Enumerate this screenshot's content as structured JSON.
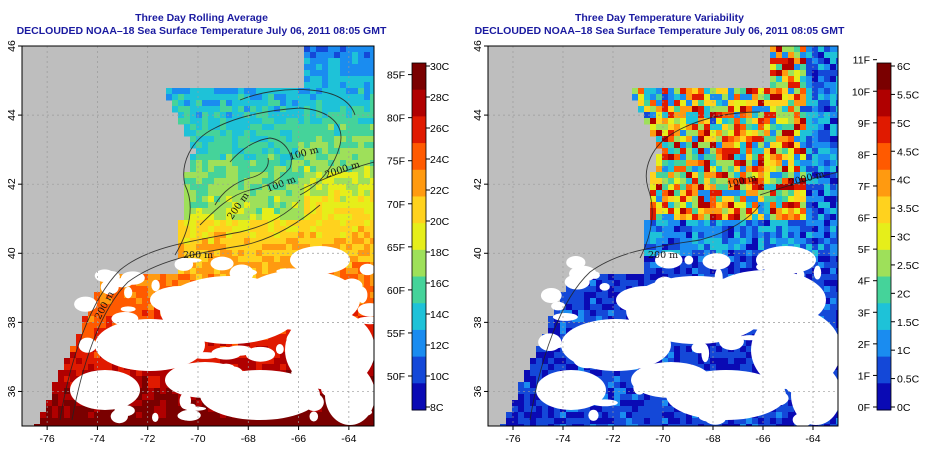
{
  "colors": {
    "land": "#bebebe",
    "cloud": "#ffffff",
    "title": "#1a1aa0",
    "contour": "#222222",
    "grid": "#9a9a9a"
  },
  "panels": [
    {
      "title": "Three Day Rolling Average",
      "subtitle": "DECLOUDED NOAA–18 Sea Surface Temperature July 06, 2011 08:05 GMT",
      "field": "sst",
      "contour_labels": [
        "200 m",
        "200 m",
        "200 m",
        "2000 m",
        "100 m",
        "100 m"
      ],
      "colorbar": {
        "left_labels": [
          "85F",
          "80F",
          "75F",
          "70F",
          "65F",
          "60F",
          "55F",
          "50F"
        ],
        "right_labels": [
          "30C",
          "28C",
          "26C",
          "24C",
          "22C",
          "20C",
          "18C",
          "16C",
          "14C",
          "12C",
          "10C",
          "8C"
        ],
        "colors": [
          "#7a0000",
          "#b00000",
          "#e01a00",
          "#ff5a00",
          "#ff9a10",
          "#ffd21e",
          "#e6ee1a",
          "#9ee05a",
          "#45d39a",
          "#1ec2d8",
          "#1a8cf0",
          "#1448d8",
          "#0a0ab4"
        ]
      }
    },
    {
      "title": "Three Day Temperature Variability",
      "subtitle": "DECLOUDED NOAA–18 Sea Surface Temperature July 06, 2011 08:05 GMT",
      "field": "variability",
      "contour_labels": [
        "200 m",
        "2000 m",
        "100 m"
      ],
      "colorbar": {
        "left_labels": [
          "11F",
          "10F",
          "9F",
          "8F",
          "7F",
          "6F",
          "5F",
          "4F",
          "3F",
          "2F",
          "1F",
          "0F"
        ],
        "right_labels": [
          "6C",
          "5.5C",
          "5C",
          "4.5C",
          "4C",
          "3.5C",
          "3C",
          "2.5C",
          "2C",
          "1.5C",
          "1C",
          "0.5C",
          "0C"
        ],
        "colors": [
          "#7a0000",
          "#b00000",
          "#e01a00",
          "#ff5a00",
          "#ff9a10",
          "#ffd21e",
          "#e6ee1a",
          "#9ee05a",
          "#45d39a",
          "#1ec2d8",
          "#1a8cf0",
          "#1448d8",
          "#0a0ab4"
        ]
      }
    }
  ],
  "axes": {
    "lon_ticks": [
      "-76",
      "-74",
      "-72",
      "-70",
      "-68",
      "-66",
      "-64"
    ],
    "lat_ticks": [
      "36",
      "38",
      "40",
      "42",
      "44",
      "46"
    ],
    "lon_range": [
      -77.0,
      -63.0
    ],
    "lat_range": [
      35.0,
      46.0
    ]
  }
}
